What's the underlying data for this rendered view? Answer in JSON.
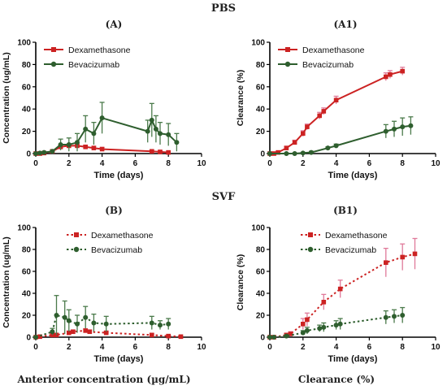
{
  "figure": {
    "section_top": "PBS",
    "section_bottom": "SVF",
    "caption_left": "Anterior concentration (µg/mL)",
    "caption_right": "Clearance (%)"
  },
  "colors": {
    "dex": "#cc2222",
    "bev": "#2e5e2e",
    "dex_err": "#e07a9a",
    "bev_err": "#4a7a4a"
  },
  "chart_data": [
    {
      "panel": "(A)",
      "type": "line",
      "line_style": "solid",
      "xlabel": "Time (days)",
      "ylabel": "Concentration (ug/mL)",
      "xlim": [
        0,
        10
      ],
      "ylim": [
        0,
        100
      ],
      "xticks": [
        0,
        2,
        4,
        6,
        8,
        10
      ],
      "yticks": [
        0,
        20,
        40,
        60,
        80,
        100
      ],
      "legend": "top-left",
      "series": [
        {
          "name": "Dexamethasone",
          "x": [
            0,
            0.25,
            0.5,
            1,
            1.5,
            2,
            2.5,
            3,
            3.5,
            4,
            7,
            7.5,
            8
          ],
          "y": [
            0,
            0,
            0.5,
            2,
            6,
            7,
            7,
            6,
            5,
            4,
            2,
            1.5,
            1
          ],
          "err": [
            0.5,
            0.5,
            0.5,
            1,
            1.5,
            1.5,
            1.5,
            1.5,
            1.5,
            1.5,
            1,
            1,
            1
          ]
        },
        {
          "name": "Bevacizumab",
          "x": [
            0,
            0.25,
            0.5,
            1,
            1.5,
            2,
            2.5,
            3,
            3.5,
            4,
            6.75,
            7,
            7.25,
            7.5,
            8,
            8.5
          ],
          "y": [
            0,
            0.5,
            1,
            2,
            8,
            8,
            10,
            22,
            18,
            32,
            20,
            30,
            22,
            18,
            17,
            10
          ],
          "err": [
            0.5,
            0.5,
            0.5,
            1,
            5,
            6,
            8,
            12,
            10,
            14,
            10,
            15,
            12,
            10,
            10,
            8
          ]
        }
      ]
    },
    {
      "panel": "(A1)",
      "type": "line",
      "line_style": "solid",
      "xlabel": "Time (days)",
      "ylabel": "Clearance (%)",
      "xlim": [
        0,
        10
      ],
      "ylim": [
        0,
        100
      ],
      "xticks": [
        0,
        2,
        4,
        6,
        8,
        10
      ],
      "yticks": [
        0,
        20,
        40,
        60,
        80,
        100
      ],
      "legend": "top-left",
      "series": [
        {
          "name": "Dexamethasone",
          "x": [
            0,
            0.25,
            0.5,
            1,
            1.5,
            2,
            2.25,
            3,
            3.25,
            4,
            7,
            7.25,
            8
          ],
          "y": [
            0,
            0,
            1,
            5,
            10,
            18,
            24,
            34,
            38,
            48,
            69,
            71,
            74
          ],
          "err": [
            0.5,
            0.5,
            1,
            1.5,
            2,
            2.5,
            2.5,
            3,
            3,
            3.5,
            3.5,
            3.5,
            3.5
          ]
        },
        {
          "name": "Bevacizumab",
          "x": [
            0,
            1,
            1.5,
            2,
            2.5,
            3.5,
            4,
            7,
            7.5,
            8,
            8.5
          ],
          "y": [
            0,
            0,
            0,
            0.5,
            1,
            5,
            7,
            20,
            22,
            24,
            25
          ],
          "err": [
            0.5,
            0.5,
            0.5,
            0.5,
            1,
            1,
            1.5,
            6,
            7,
            8,
            8
          ]
        }
      ]
    },
    {
      "panel": "(B)",
      "type": "line",
      "line_style": "dotted",
      "xlabel": "Time (days)",
      "ylabel": "Concentration (ug/mL)",
      "xlim": [
        0,
        10
      ],
      "ylim": [
        0,
        100
      ],
      "xticks": [
        0,
        2,
        4,
        6,
        8,
        10
      ],
      "yticks": [
        0,
        20,
        40,
        60,
        80,
        100
      ],
      "legend": "top-right",
      "series": [
        {
          "name": "Dexamethasone",
          "x": [
            0,
            0.25,
            1,
            1.25,
            2,
            2.25,
            3,
            3.25,
            4.25,
            7,
            8,
            8.75
          ],
          "y": [
            0,
            0.5,
            2,
            2,
            4,
            5,
            6,
            5,
            4,
            2,
            1,
            0.5
          ],
          "err": [
            0.5,
            0.5,
            1,
            1,
            1.5,
            1.5,
            1.5,
            1.5,
            1.5,
            1,
            1,
            0.5
          ]
        },
        {
          "name": "Bevacizumab",
          "x": [
            0,
            1,
            1.25,
            1.75,
            2,
            2.5,
            3,
            3.5,
            4.25,
            7,
            7.5,
            8
          ],
          "y": [
            0,
            5,
            20,
            18,
            15,
            12,
            18,
            13,
            12,
            13,
            11,
            12
          ],
          "err": [
            0.5,
            3,
            18,
            15,
            10,
            8,
            10,
            8,
            7,
            6,
            4,
            5
          ]
        }
      ]
    },
    {
      "panel": "(B1)",
      "type": "line",
      "line_style": "dotted",
      "xlabel": "Time (days)",
      "ylabel": "Clearance (%)",
      "xlim": [
        0,
        10
      ],
      "ylim": [
        0,
        100
      ],
      "xticks": [
        0,
        2,
        4,
        6,
        8,
        10
      ],
      "yticks": [
        0,
        20,
        40,
        60,
        80,
        100
      ],
      "legend": "top-right",
      "series": [
        {
          "name": "Dexamethasone",
          "x": [
            0,
            0.25,
            1,
            1.25,
            2,
            2.25,
            3.25,
            4.25,
            7,
            8,
            8.75
          ],
          "y": [
            0,
            0,
            2,
            3,
            12,
            16,
            32,
            44,
            68,
            73,
            76
          ],
          "err": [
            0.5,
            0.5,
            1.5,
            2,
            5,
            6,
            7,
            8,
            13,
            12,
            14
          ]
        },
        {
          "name": "Bevacizumab",
          "x": [
            0,
            0.25,
            1,
            2,
            2.25,
            3,
            3.25,
            4,
            4.25,
            7,
            7.5,
            8
          ],
          "y": [
            0,
            0,
            1,
            4,
            6,
            8,
            9,
            11,
            12,
            18,
            19,
            20
          ],
          "err": [
            0.5,
            0.5,
            1,
            2,
            3,
            3,
            4,
            4,
            5,
            6,
            6,
            7
          ]
        }
      ]
    }
  ]
}
